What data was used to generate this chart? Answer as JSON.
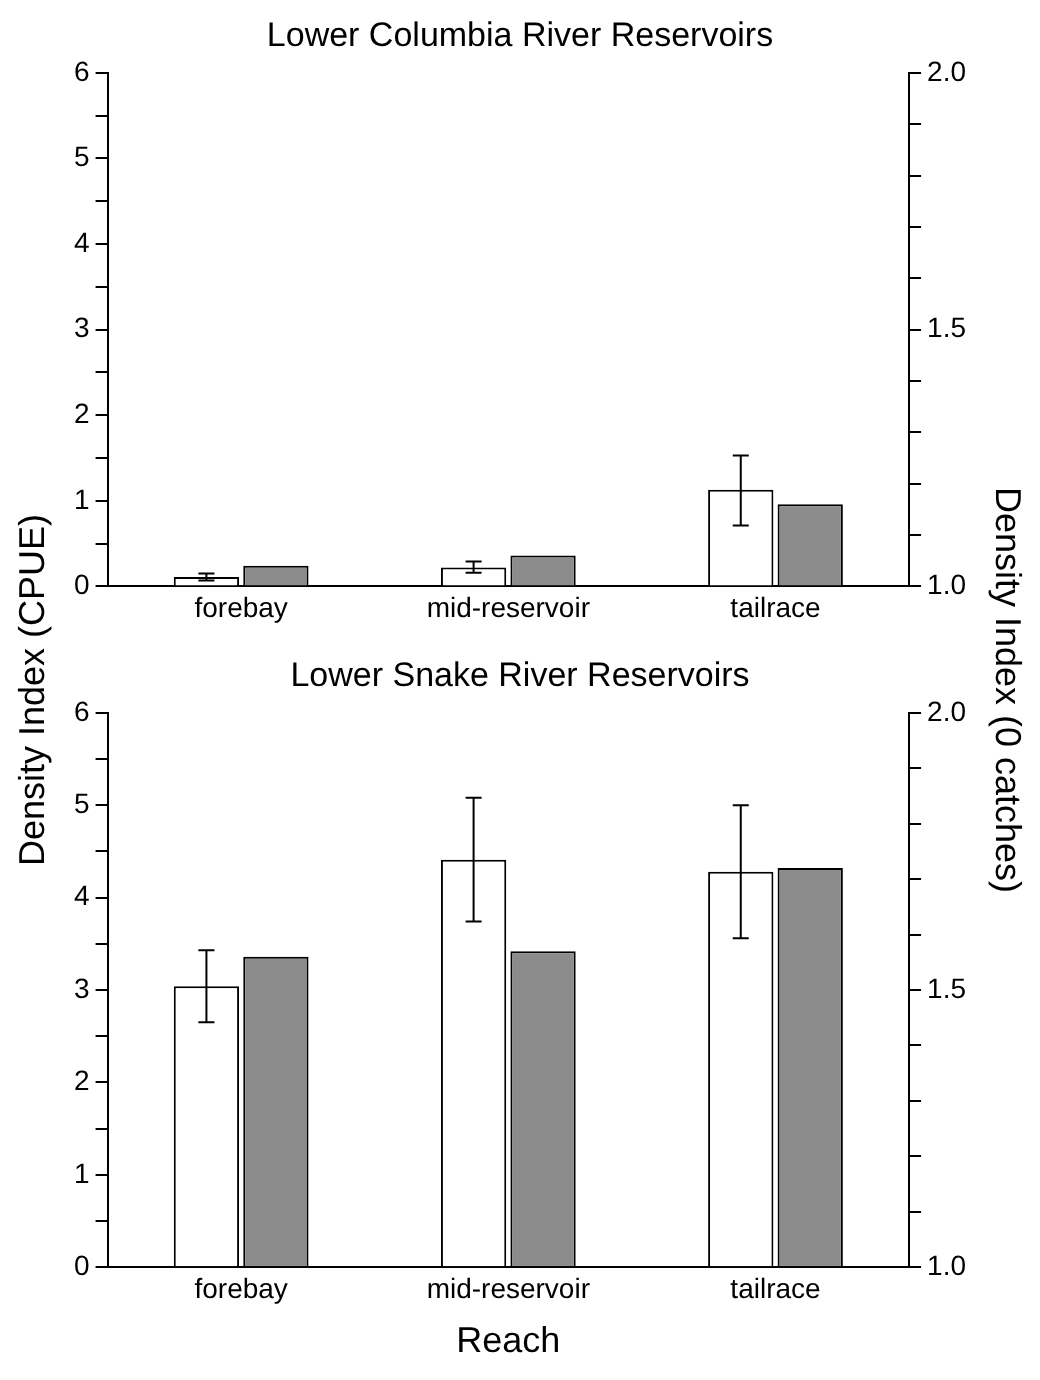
{
  "chart_data": [
    {
      "type": "bar",
      "title": "Lower Columbia River Reservoirs",
      "ylabel": "Density Index (CPUE)",
      "y2label": "Density Index (0 catches)",
      "categories": [
        "forebay",
        "mid-reservoir",
        "tailrace"
      ],
      "series": [
        {
          "color": "#ffffff",
          "values": [
            0.11,
            0.22,
            1.13
          ],
          "errors": [
            [
              0.07,
              0.15
            ],
            [
              0.16,
              0.29
            ],
            [
              0.71,
              1.53
            ]
          ]
        },
        {
          "color": "#8c8c8c",
          "values": [
            1.04,
            1.06,
            1.16
          ],
          "axis": "y2"
        }
      ],
      "ylim": [
        0,
        6
      ],
      "yticks": [
        0,
        {
          "value": 0.5,
          "label": null
        },
        1,
        {
          "value": 1.5,
          "label": null
        },
        2,
        {
          "value": 2.5,
          "label": null
        },
        3,
        {
          "value": 3.5,
          "label": null
        },
        4,
        {
          "value": 4.5,
          "label": null
        },
        5,
        {
          "value": 5.5,
          "label": null
        },
        6
      ],
      "y2lim": [
        1,
        2
      ],
      "y2ticks": [
        {
          "value": 1,
          "label": "1.0"
        },
        {
          "value": 1.1,
          "label": null
        },
        {
          "value": 1.2,
          "label": null
        },
        {
          "value": 1.3,
          "label": null
        },
        {
          "value": 1.4,
          "label": null
        },
        {
          "value": 1.5,
          "label": "1.5"
        },
        {
          "value": 1.6,
          "label": null
        },
        {
          "value": 1.7,
          "label": null
        },
        {
          "value": 1.8,
          "label": null
        },
        {
          "value": 1.9,
          "label": null
        },
        {
          "value": 2,
          "label": "2.0"
        }
      ],
      "grid": false,
      "legend": false
    },
    {
      "type": "bar",
      "title": "Lower Snake River Reservoirs",
      "xlabel": "Reach",
      "categories": [
        "forebay",
        "mid-reservoir",
        "tailrace"
      ],
      "series": [
        {
          "color": "#ffffff",
          "values": [
            3.04,
            4.41,
            4.28
          ],
          "errors": [
            [
              2.65,
              3.43
            ],
            [
              3.74,
              5.08
            ],
            [
              3.56,
              5.0
            ]
          ]
        },
        {
          "color": "#8c8c8c",
          "values": [
            1.56,
            1.57,
            1.72
          ],
          "axis": "y2"
        }
      ],
      "ylim": [
        0,
        6
      ],
      "yticks": [
        0,
        {
          "value": 0.5,
          "label": null
        },
        1,
        {
          "value": 1.5,
          "label": null
        },
        2,
        {
          "value": 2.5,
          "label": null
        },
        3,
        {
          "value": 3.5,
          "label": null
        },
        4,
        {
          "value": 4.5,
          "label": null
        },
        5,
        {
          "value": 5.5,
          "label": null
        },
        6
      ],
      "y2lim": [
        1,
        2
      ],
      "y2ticks": [
        {
          "value": 1,
          "label": "1.0"
        },
        {
          "value": 1.1,
          "label": null
        },
        {
          "value": 1.2,
          "label": null
        },
        {
          "value": 1.3,
          "label": null
        },
        {
          "value": 1.4,
          "label": null
        },
        {
          "value": 1.5,
          "label": "1.5"
        },
        {
          "value": 1.6,
          "label": null
        },
        {
          "value": 1.7,
          "label": null
        },
        {
          "value": 1.8,
          "label": null
        },
        {
          "value": 1.9,
          "label": null
        },
        {
          "value": 2,
          "label": "2.0"
        }
      ],
      "grid": false,
      "legend": false
    }
  ]
}
